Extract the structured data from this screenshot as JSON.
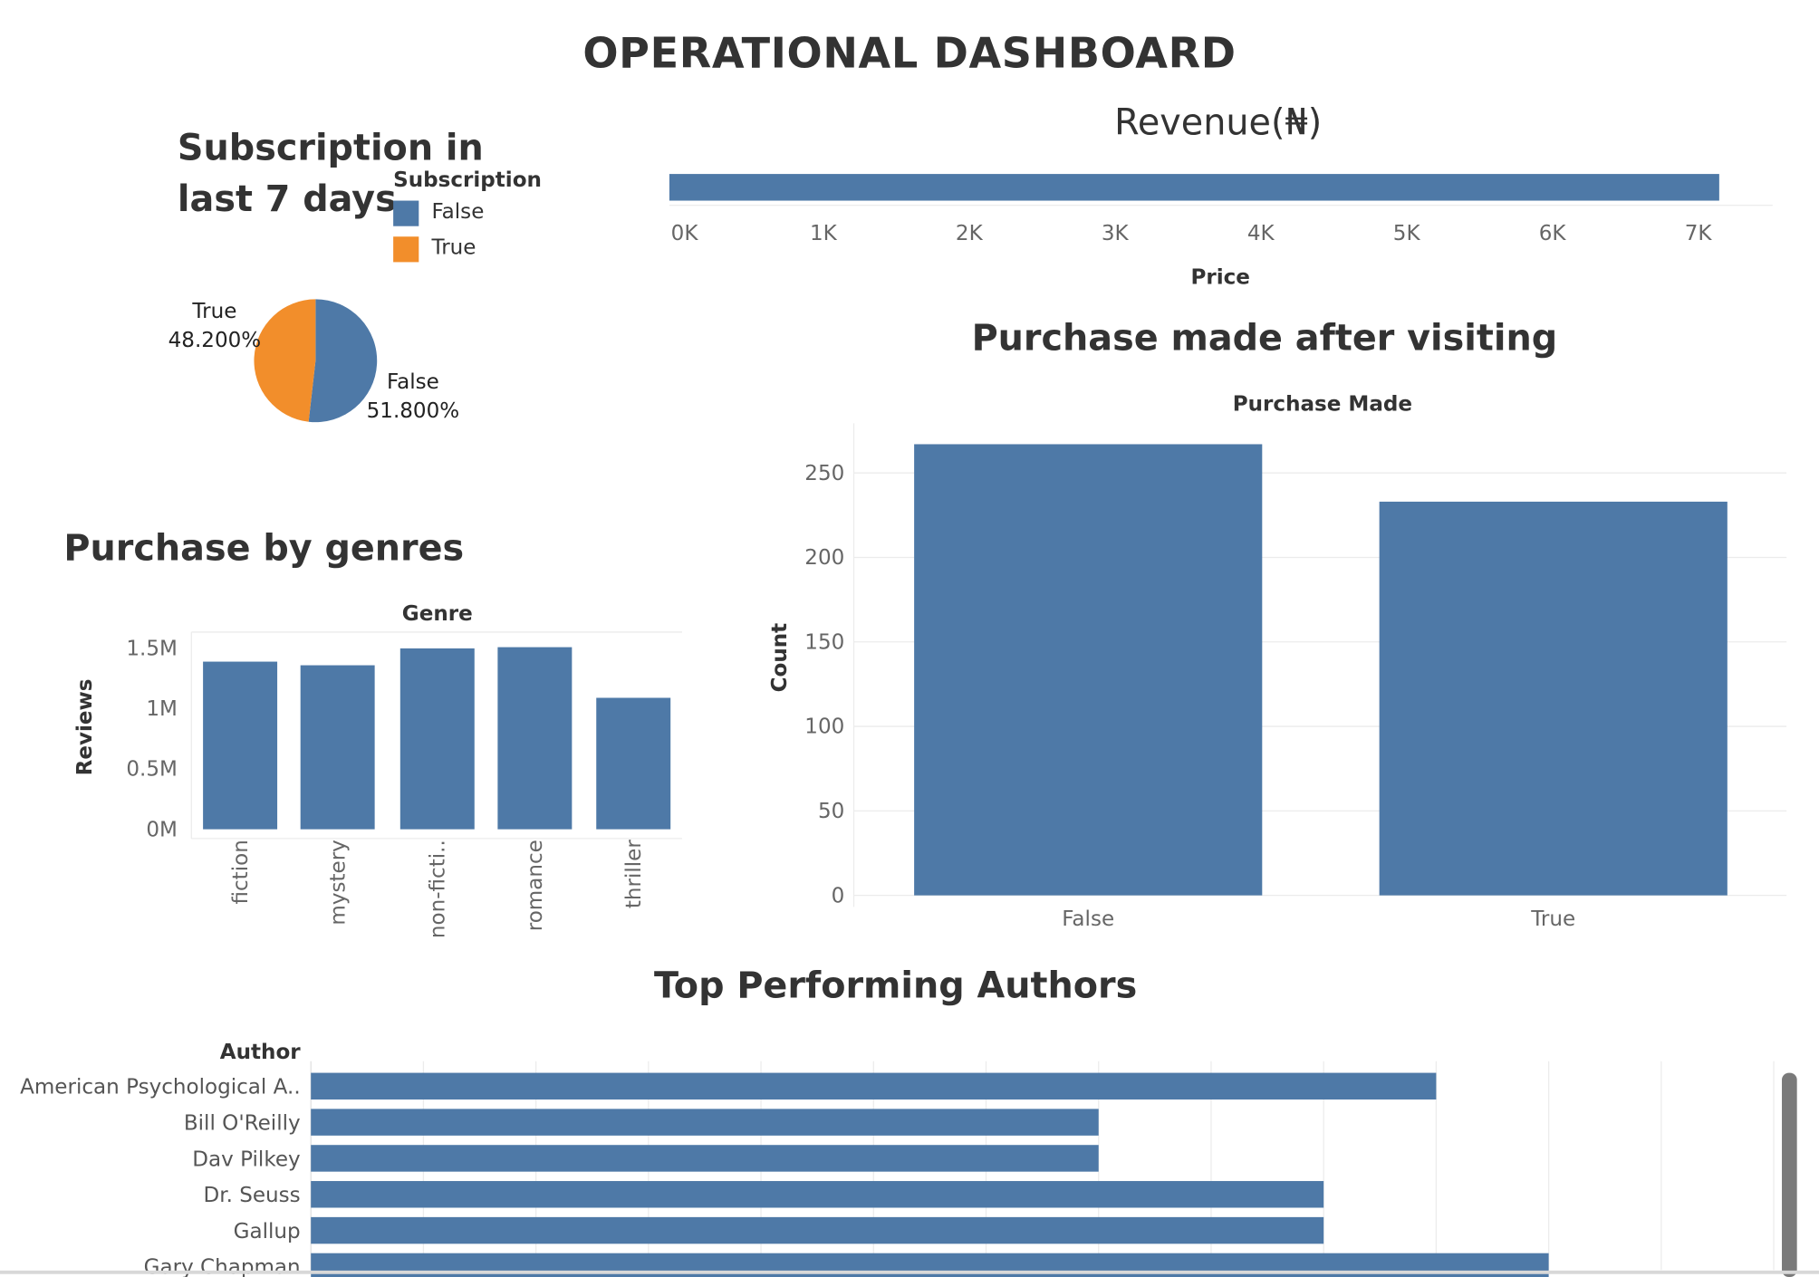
{
  "dashboard": {
    "title": "OPERATIONAL DASHBOARD"
  },
  "colors": {
    "blue": "#4e79a7",
    "orange": "#f28e2b",
    "grid": "#ececec"
  },
  "subscription": {
    "title_line1": "Subscription in",
    "title_line2": "last 7 days",
    "legend_title": "Subscription",
    "legend": [
      "False",
      "True"
    ]
  },
  "chart_data": [
    {
      "id": "subscription",
      "type": "pie",
      "slices": [
        {
          "name": "False",
          "percent": 51.8,
          "label": "51.800%",
          "color": "#4e79a7"
        },
        {
          "name": "True",
          "percent": 48.2,
          "label": "48.200%",
          "color": "#f28e2b"
        }
      ]
    },
    {
      "id": "revenue",
      "type": "bar",
      "title": "Revenue(₦)",
      "xlabel": "Price",
      "x_ticks": [
        "0K",
        "1K",
        "2K",
        "3K",
        "4K",
        "5K",
        "6K",
        "7K"
      ],
      "xlim": [
        0,
        7500
      ],
      "values": [
        7200
      ]
    },
    {
      "id": "purchase_made",
      "type": "bar",
      "title": "Purchase made after visiting",
      "header": "Purchase Made",
      "ylabel": "Count",
      "categories": [
        "False",
        "True"
      ],
      "values": [
        267,
        233
      ],
      "y_ticks": [
        0,
        50,
        100,
        150,
        200,
        250
      ],
      "ylim": [
        0,
        275
      ]
    },
    {
      "id": "genres",
      "type": "bar",
      "title": "Purchase by genres",
      "header": "Genre",
      "ylabel": "Reviews",
      "categories": [
        "fiction",
        "mystery",
        "non-ficti..",
        "romance",
        "thriller"
      ],
      "values": [
        1.39,
        1.36,
        1.5,
        1.51,
        1.09
      ],
      "y_ticks": [
        "0M",
        "0.5M",
        "1M",
        "1.5M"
      ],
      "y_tick_values": [
        0,
        0.5,
        1,
        1.5
      ],
      "ylim": [
        0,
        1.65
      ]
    },
    {
      "id": "authors",
      "type": "bar",
      "title": "Top Performing Authors",
      "header": "Author",
      "categories": [
        "American Psychological A..",
        "Bill O'Reilly",
        "Dav Pilkey",
        "Dr. Seuss",
        "Gallup",
        "Gary Chapman"
      ],
      "values": [
        10,
        7,
        7,
        9,
        9,
        11
      ],
      "xlim": [
        0,
        13.6
      ]
    }
  ]
}
